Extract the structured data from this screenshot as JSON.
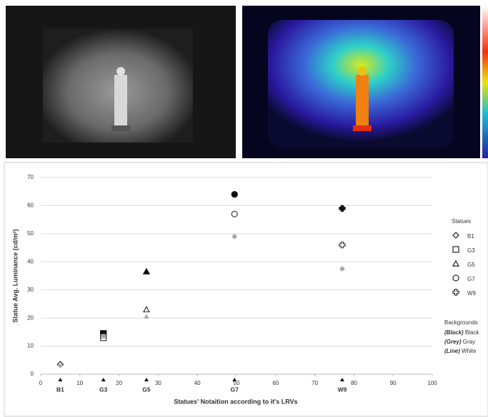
{
  "chart_data": {
    "type": "scatter",
    "ylabel": "Statue Avg. Luminance (cd/m²)",
    "xlabel": "Statues' Notaition according to it's LRVs",
    "xlim": [
      0,
      100
    ],
    "xticks": [
      0,
      10,
      20,
      30,
      40,
      50,
      60,
      70,
      80,
      90,
      100
    ],
    "ylim": [
      0,
      70
    ],
    "yticks": [
      0,
      10,
      20,
      30,
      40,
      50,
      60,
      70
    ],
    "grid": true,
    "statues_title": "Statues",
    "statues": [
      {
        "name": "B1",
        "x": 5,
        "marker": "diamond"
      },
      {
        "name": "G3",
        "x": 16,
        "marker": "square"
      },
      {
        "name": "G5",
        "x": 27,
        "marker": "triangle"
      },
      {
        "name": "G7",
        "x": 49.5,
        "marker": "circle"
      },
      {
        "name": "W9",
        "x": 77,
        "marker": "cross"
      }
    ],
    "backgrounds_title": "Backgrounds",
    "series": [
      {
        "name": "Black",
        "tag": "(Black)",
        "color": "#111111",
        "style": "filled",
        "values": [
          3.5,
          14.5,
          36.5,
          64,
          59
        ]
      },
      {
        "name": "Gray",
        "tag": "(Grey)",
        "color": "#444444",
        "style": "open",
        "values": [
          3.5,
          13,
          23,
          57,
          46
        ]
      },
      {
        "name": "White",
        "tag": "(Line)",
        "color": "#a8a8a8",
        "style": "filled",
        "values": [
          3,
          13.5,
          20.5,
          49,
          37.5
        ]
      }
    ]
  }
}
